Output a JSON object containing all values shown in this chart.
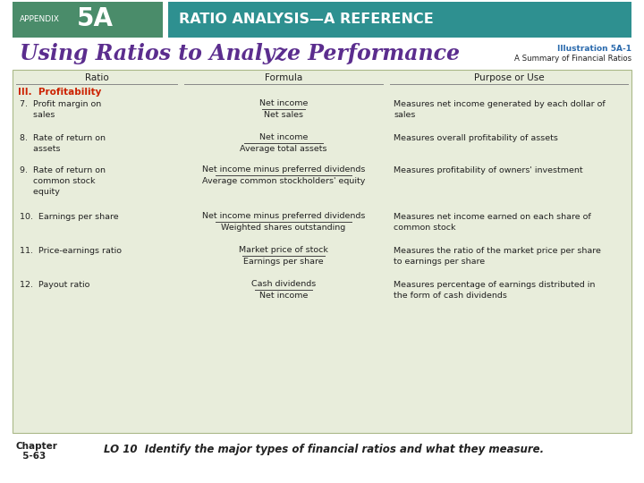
{
  "header_green_color": "#4a8c6a",
  "header_teal_color": "#2e9090",
  "title_color": "#5b2d8e",
  "illustration_color": "#2a6aad",
  "section_color": "#cc2200",
  "table_bg": "#e8eddb",
  "table_border": "#aab888",
  "body_text_color": "#222222",
  "bg_color": "#ffffff",
  "header_appendix": "APPENDIX",
  "header_5a": "5A",
  "header_subtitle": "RATIO ANALYSIS—A REFERENCE",
  "title": "Using Ratios to Analyze Performance",
  "illustration_title": "Illustration 5A-1",
  "illustration_subtitle": "A Summary of Financial Ratios",
  "col_headers": [
    "Ratio",
    "Formula",
    "Purpose or Use"
  ],
  "section_label": "III.  Profitability",
  "rows": [
    {
      "ratio": "7.  Profit margin on\n     sales",
      "formula_num": "Net income",
      "formula_den": "Net sales",
      "purpose": "Measures net income generated by each dollar of\nsales"
    },
    {
      "ratio": "8.  Rate of return on\n     assets",
      "formula_num": "Net income",
      "formula_den": "Average total assets",
      "purpose": "Measures overall profitability of assets"
    },
    {
      "ratio": "9.  Rate of return on\n     common stock\n     equity",
      "formula_num": "Net income minus preferred dividends",
      "formula_den": "Average common stockholders' equity",
      "purpose": "Measures profitability of owners' investment"
    },
    {
      "ratio": "10.  Earnings per share",
      "formula_num": "Net income minus preferred dividends",
      "formula_den": "Weighted shares outstanding",
      "purpose": "Measures net income earned on each share of\ncommon stock"
    },
    {
      "ratio": "11.  Price-earnings ratio",
      "formula_num": "Market price of stock",
      "formula_den": "Earnings per share",
      "purpose": "Measures the ratio of the market price per share\nto earnings per share"
    },
    {
      "ratio": "12.  Payout ratio",
      "formula_num": "Cash dividends",
      "formula_den": "Net income",
      "purpose": "Measures percentage of earnings distributed in\nthe form of cash dividends"
    }
  ],
  "chapter_label1": "Chapter",
  "chapter_label2": "  5-63",
  "bottom_text": "LO 10  Identify the major types of financial ratios and what they measure."
}
